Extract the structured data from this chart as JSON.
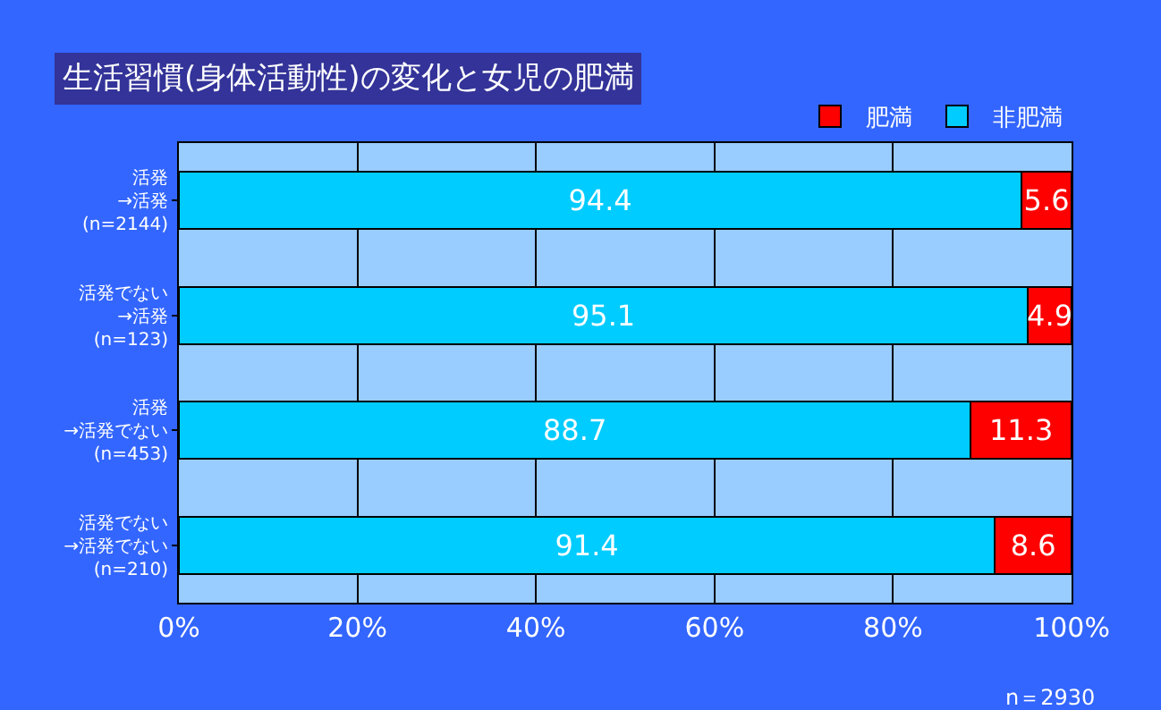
{
  "chart_data": {
    "type": "bar",
    "orientation": "horizontal",
    "stacked": true,
    "title": "生活習慣(身体活動性)の変化と女児の肥満",
    "categories": [
      "活発\n→活発\n(n=2144)",
      "活発でない\n→活発\n(n=123)",
      "活発\n→活発でない\n(n=453)",
      "活発でない\n→活発でない\n(n=210)"
    ],
    "series": [
      {
        "name": "非肥満",
        "color": "#00ccff",
        "values": [
          94.4,
          95.1,
          88.7,
          91.4
        ]
      },
      {
        "name": "肥満",
        "color": "#ff0000",
        "values": [
          5.6,
          4.9,
          11.3,
          8.6
        ]
      }
    ],
    "xlim": [
      0,
      100
    ],
    "xticks": [
      {
        "value": 0,
        "label": "0%"
      },
      {
        "value": 20,
        "label": "20%"
      },
      {
        "value": 40,
        "label": "40%"
      },
      {
        "value": 60,
        "label": "60%"
      },
      {
        "value": 80,
        "label": "80%"
      },
      {
        "value": 100,
        "label": "100%"
      }
    ],
    "data_labels": true,
    "grid": "x",
    "legend": "top",
    "annotations": [
      "n＝2930"
    ]
  }
}
